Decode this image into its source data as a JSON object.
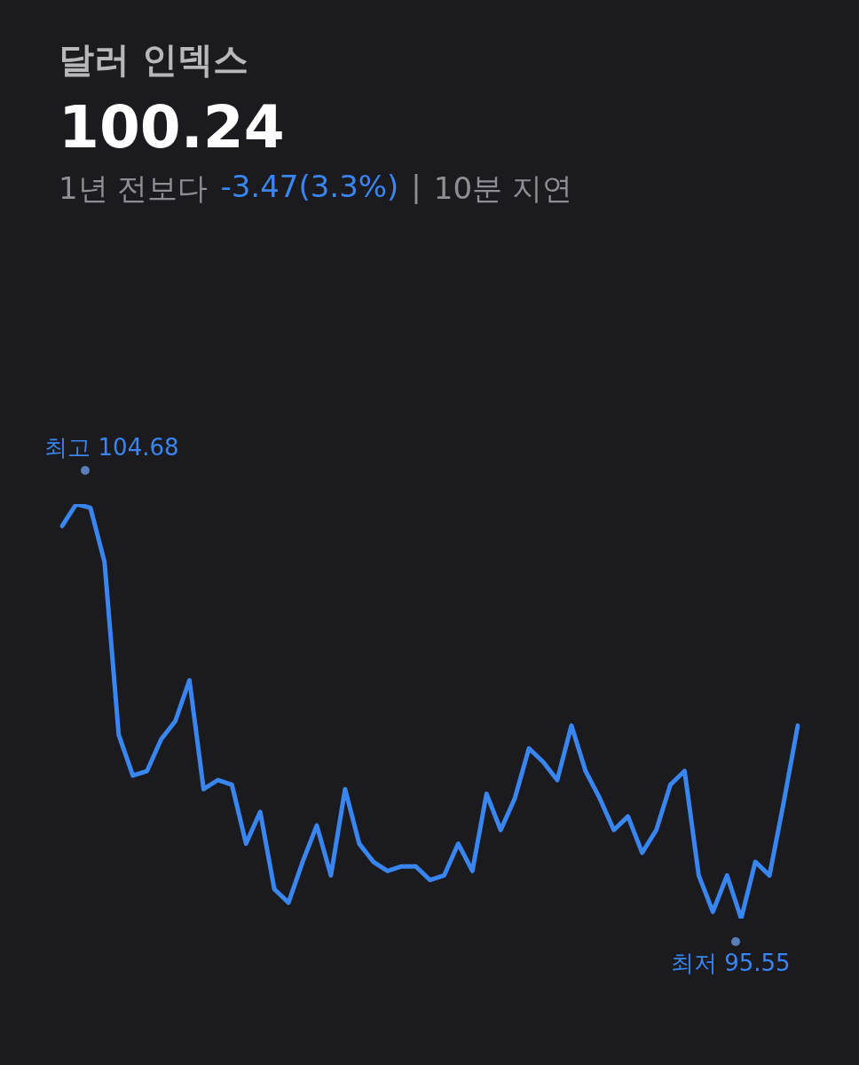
{
  "chart_data": {
    "type": "line",
    "title": "달러 인덱스",
    "subtitle": "100.24",
    "annotations": [
      "1년 전보다",
      "-3.47(3.3%)",
      "|",
      "10분 지연"
    ],
    "categories": [
      null,
      null,
      null,
      null,
      null,
      null,
      null,
      null,
      null,
      null,
      null,
      null,
      null,
      null,
      null,
      null,
      null,
      null,
      null,
      null,
      null,
      null,
      null,
      null,
      null,
      null,
      null,
      null,
      null,
      null,
      null,
      null,
      null,
      null,
      null,
      null,
      null,
      null,
      null,
      null,
      null,
      null,
      null,
      null,
      null,
      null,
      null,
      null,
      null,
      null,
      null,
      null,
      null
    ],
    "series": [
      {
        "color": "#3a86f0",
        "values": [
          104.2,
          104.68,
          104.6,
          103.4,
          99.6,
          98.7,
          98.8,
          99.5,
          99.9,
          100.8,
          98.4,
          98.6,
          98.5,
          97.2,
          97.9,
          96.2,
          95.9,
          96.8,
          97.6,
          96.5,
          98.4,
          97.2,
          96.8,
          96.6,
          96.7,
          96.7,
          96.4,
          96.5,
          97.2,
          96.6,
          98.3,
          97.5,
          98.2,
          99.3,
          99.0,
          98.6,
          99.8,
          98.8,
          98.2,
          97.5,
          97.8,
          97.0,
          97.5,
          98.5,
          98.8,
          96.5,
          95.7,
          96.5,
          95.55,
          96.8,
          96.5,
          98.1,
          99.8
        ],
        "value_labels": [
          null,
          "최고 104.68",
          null,
          null,
          null,
          null,
          null,
          null,
          null,
          null,
          null,
          null,
          null,
          null,
          null,
          null,
          null,
          null,
          null,
          null,
          null,
          null,
          null,
          null,
          null,
          null,
          null,
          null,
          null,
          null,
          null,
          null,
          null,
          null,
          null,
          null,
          null,
          null,
          null,
          null,
          null,
          null,
          null,
          null,
          null,
          null,
          null,
          null,
          "최저 95.55",
          null,
          null,
          null,
          null
        ]
      }
    ],
    "legend": false,
    "marker": "none",
    "line_style": "solid"
  }
}
